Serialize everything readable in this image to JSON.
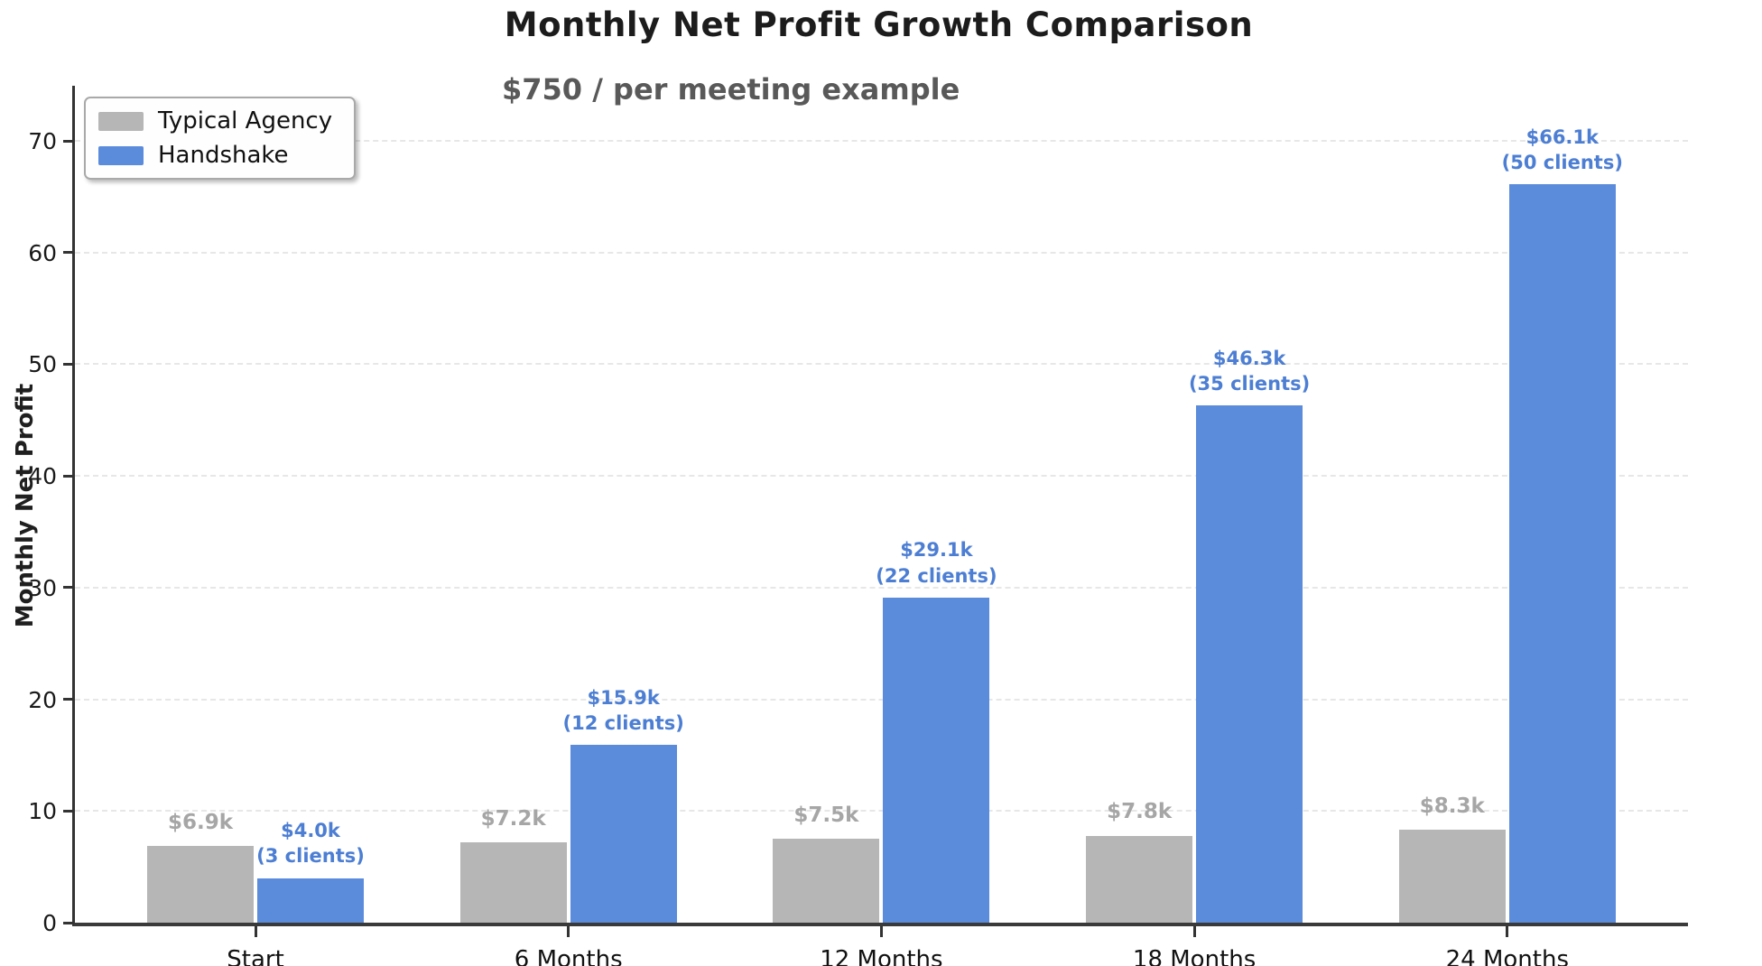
{
  "title": "Monthly Net Profit Growth Comparison",
  "subtitle": "$750 / per meeting example",
  "legend": {
    "items": [
      {
        "label": "Typical Agency",
        "color": "#b6b6b6"
      },
      {
        "label": "Handshake",
        "color": "#5b8bdb"
      }
    ]
  },
  "chart_data": {
    "type": "bar",
    "title": "Monthly Net Profit Growth Comparison",
    "subtitle": "$750 / per meeting example",
    "xlabel": "",
    "ylabel": "Monthly Net Profit",
    "ylim": [
      0,
      70
    ],
    "yticks": [
      0,
      10,
      20,
      30,
      40,
      50,
      60,
      70
    ],
    "grid": "dashed horizontal",
    "legend_position": "upper left",
    "categories": [
      "Start",
      "6 Months",
      "12 Months",
      "18 Months",
      "24 Months"
    ],
    "series": [
      {
        "name": "Typical Agency",
        "color": "#b6b6b6",
        "label_color": "#a6a6a6",
        "values": [
          6.9,
          7.2,
          7.5,
          7.8,
          8.3
        ],
        "labels": [
          "$6.9k",
          "$7.2k",
          "$7.5k",
          "$7.8k",
          "$8.3k"
        ]
      },
      {
        "name": "Handshake",
        "color": "#5b8bdb",
        "label_color": "#4c7ed3",
        "values": [
          4.0,
          15.9,
          29.1,
          46.3,
          66.1
        ],
        "labels": [
          "$4.0k",
          "$15.9k",
          "$29.1k",
          "$46.3k",
          "$66.1k"
        ],
        "sublabels": [
          "(3 clients)",
          "(12 clients)",
          "(22 clients)",
          "(35 clients)",
          "(50 clients)"
        ]
      }
    ]
  }
}
